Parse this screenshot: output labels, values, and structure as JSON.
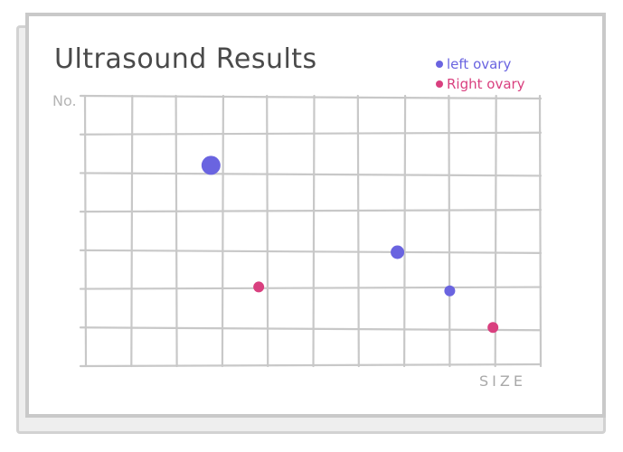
{
  "chart_data": {
    "type": "scatter",
    "title": "Ultrasound Results",
    "xlabel": "SIZE",
    "ylabel": "No.",
    "grid": true,
    "legend_position": "top-right",
    "xlim": [
      0,
      10
    ],
    "ylim": [
      0,
      7
    ],
    "series": [
      {
        "name": "left ovary",
        "color": "#6a64e0",
        "points": [
          {
            "x": 2.75,
            "y": 5.2,
            "size": "large"
          },
          {
            "x": 6.85,
            "y": 2.95,
            "size": "medium"
          },
          {
            "x": 8.0,
            "y": 1.95,
            "size": "small"
          }
        ]
      },
      {
        "name": "Right ovary",
        "color": "#d9407f",
        "points": [
          {
            "x": 3.8,
            "y": 2.05,
            "size": "small"
          },
          {
            "x": 8.95,
            "y": 1.0,
            "size": "small"
          }
        ]
      }
    ]
  }
}
